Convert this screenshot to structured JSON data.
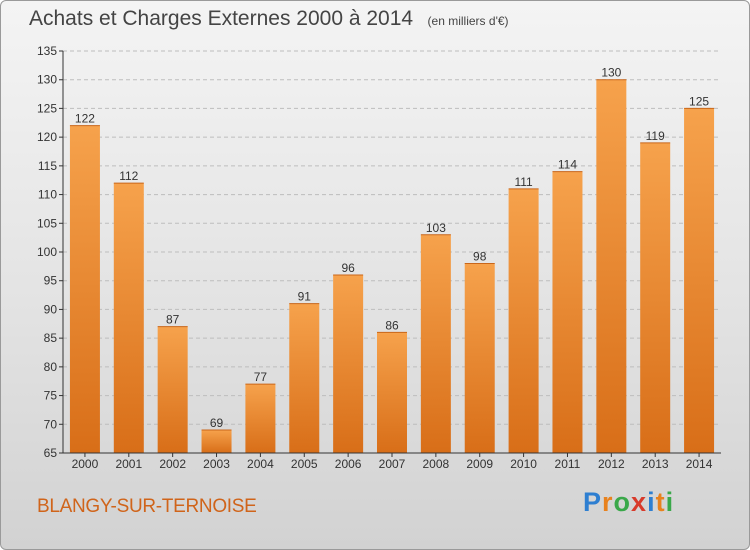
{
  "header": {
    "title": "Achats et Charges Externes 2000 à 2014",
    "unit": "(en milliers d'€)"
  },
  "footer": {
    "commune": "BLANGY-SUR-TERNOISE",
    "logo": {
      "letters": [
        "P",
        "r",
        "o",
        "x",
        "i",
        "t",
        "i"
      ],
      "colors": [
        "#2e7fd1",
        "#e8821e",
        "#3aa84a",
        "#d83a2a",
        "#2e7fd1",
        "#e8821e",
        "#3aa84a"
      ]
    }
  },
  "colors": {
    "bar_light": "#f6a24c",
    "bar_dark": "#d86e18",
    "axis": "#333333",
    "grid": "#bdbdbd"
  },
  "chart_data": {
    "type": "bar",
    "title": "Achats et Charges Externes 2000 à 2014",
    "categories": [
      "2000",
      "2001",
      "2002",
      "2003",
      "2004",
      "2005",
      "2006",
      "2007",
      "2008",
      "2009",
      "2010",
      "2011",
      "2012",
      "2013",
      "2014"
    ],
    "values": [
      122,
      112,
      87,
      69,
      77,
      91,
      96,
      86,
      103,
      98,
      111,
      114,
      130,
      119,
      125
    ],
    "ylim": [
      65,
      135
    ],
    "yticks": [
      65,
      70,
      75,
      80,
      85,
      90,
      95,
      100,
      105,
      110,
      115,
      120,
      125,
      130,
      135
    ],
    "grid": true,
    "legend": "none"
  }
}
